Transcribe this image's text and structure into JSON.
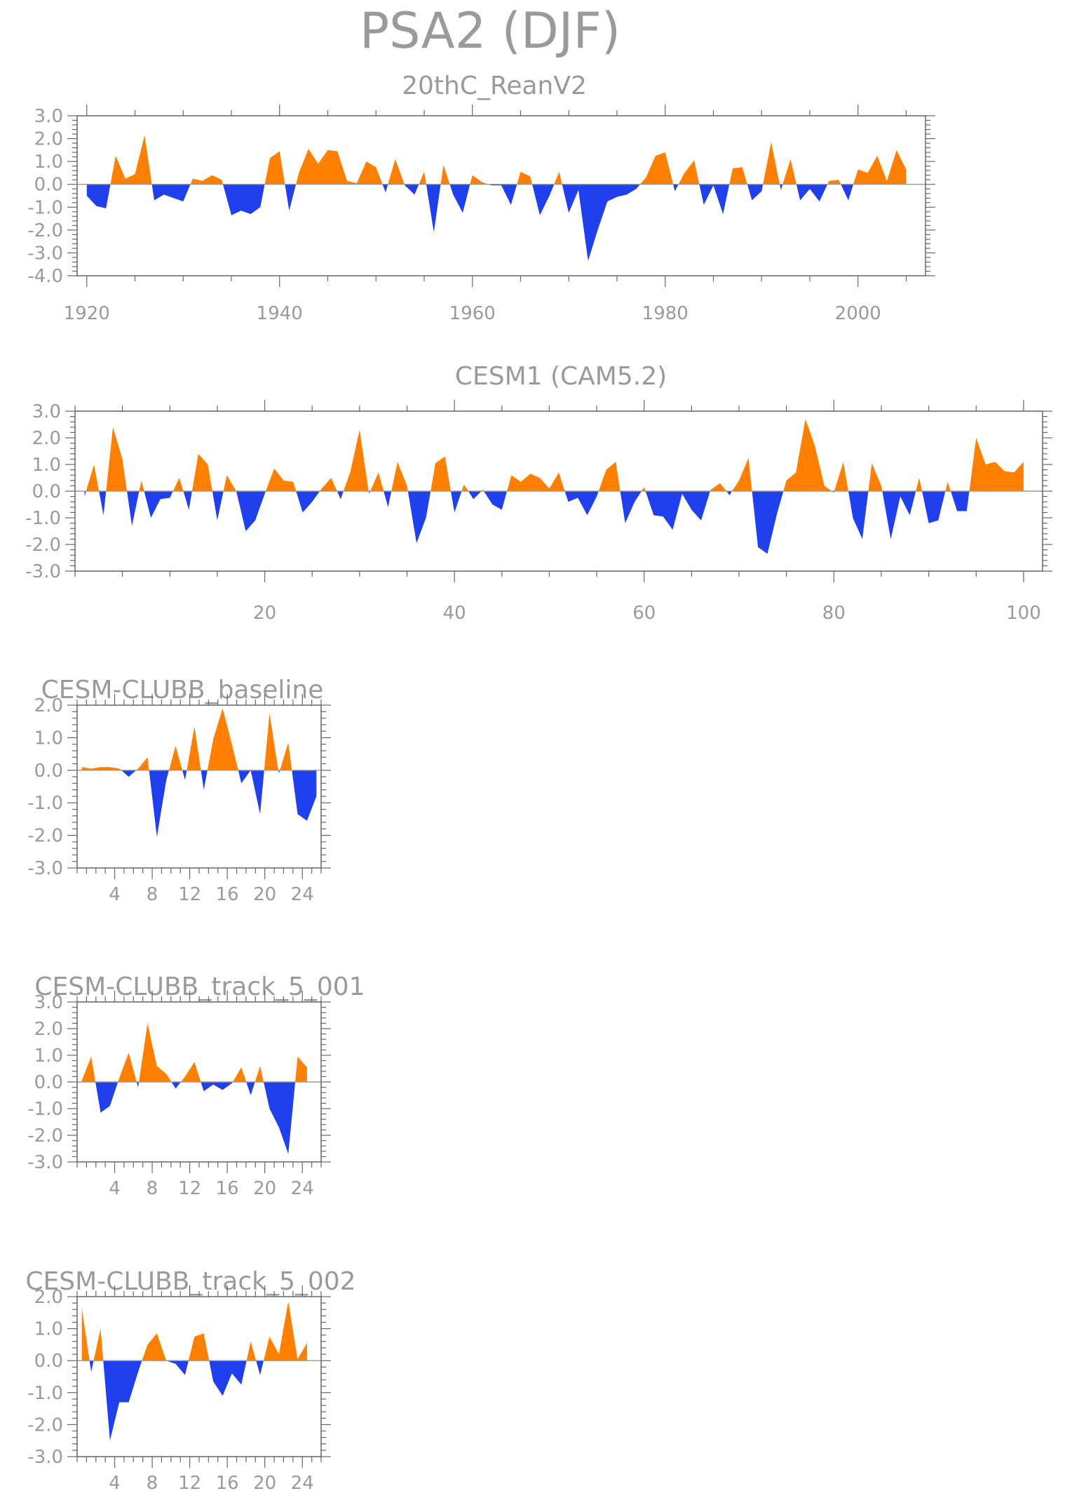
{
  "title": "PSA2 (DJF)",
  "colors": {
    "positive": "#ff8000",
    "negative": "#2040ee",
    "axis": "#666666",
    "text": "#9a9a9a"
  },
  "chart_data": [
    {
      "type": "area",
      "title": "20thC_ReanV2",
      "xlim": [
        1919,
        2007
      ],
      "ylim": [
        -4,
        3
      ],
      "x_ticks": [
        1920,
        1940,
        1960,
        1980,
        2000
      ],
      "x_tick_labels": [
        "1920",
        "1940",
        "1960",
        "1980",
        "2000"
      ],
      "y_ticks": [
        3,
        2,
        1,
        0,
        -1,
        -2,
        -3,
        -4
      ],
      "y_tick_labels": [
        "3.0",
        "2.0",
        "1.0",
        "0.0",
        "-1.0",
        "-2.0",
        "-3.0",
        "-4.0"
      ],
      "x_start": 1920,
      "values": [
        -0.5,
        -0.95,
        -1.05,
        1.25,
        0.25,
        0.45,
        2.15,
        -0.7,
        -0.45,
        -0.6,
        -0.75,
        0.25,
        0.15,
        0.4,
        0.2,
        -1.35,
        -1.15,
        -1.3,
        -1.0,
        1.15,
        1.45,
        -1.15,
        0.5,
        1.55,
        0.9,
        1.5,
        1.45,
        0.15,
        0.05,
        1.0,
        0.75,
        -0.35,
        1.1,
        -0.05,
        -0.45,
        0.55,
        -2.1,
        0.85,
        -0.45,
        -1.25,
        0.4,
        0.1,
        -0.05,
        -0.05,
        -0.9,
        0.55,
        0.35,
        -1.35,
        -0.5,
        0.55,
        -1.25,
        -0.25,
        -3.35,
        -2.0,
        -0.75,
        -0.55,
        -0.45,
        -0.2,
        0.3,
        1.25,
        1.4,
        -0.3,
        0.5,
        1.05,
        -0.9,
        -0.05,
        -1.3,
        0.7,
        0.75,
        -0.7,
        -0.3,
        1.85,
        -0.25,
        1.1,
        -0.7,
        -0.2,
        -0.75,
        0.15,
        0.2,
        -0.7,
        0.65,
        0.5,
        1.25,
        0.15,
        1.5,
        0.65
      ]
    },
    {
      "type": "area",
      "title": "CESM1 (CAM5.2)",
      "xlim": [
        0,
        102
      ],
      "ylim": [
        -3,
        3
      ],
      "x_ticks": [
        20,
        40,
        60,
        80,
        100
      ],
      "x_tick_labels": [
        "20",
        "40",
        "60",
        "80",
        "100"
      ],
      "y_ticks": [
        3,
        2,
        1,
        0,
        -1,
        -2,
        -3
      ],
      "y_tick_labels": [
        "3.0",
        "2.0",
        "1.0",
        "0.0",
        "-1.0",
        "-2.0",
        "-3.0"
      ],
      "x_start": 1,
      "values": [
        -0.2,
        1.0,
        -0.9,
        2.4,
        1.2,
        -1.3,
        0.4,
        -1.0,
        -0.3,
        -0.25,
        0.5,
        -0.7,
        1.4,
        1.0,
        -1.1,
        0.6,
        0.0,
        -1.5,
        -1.1,
        -0.1,
        0.85,
        0.4,
        0.35,
        -0.8,
        -0.4,
        0.1,
        0.5,
        -0.3,
        0.7,
        2.3,
        -0.1,
        0.7,
        -0.6,
        1.1,
        0.2,
        -1.95,
        -1.0,
        1.05,
        1.3,
        -0.8,
        0.25,
        -0.3,
        0.05,
        -0.5,
        -0.7,
        0.6,
        0.35,
        0.65,
        0.5,
        0.1,
        0.7,
        -0.4,
        -0.25,
        -0.9,
        -0.2,
        0.8,
        1.1,
        -1.2,
        -0.4,
        0.15,
        -0.9,
        -0.95,
        -1.45,
        -0.1,
        -0.7,
        -1.1,
        0.05,
        0.3,
        -0.15,
        0.4,
        1.25,
        -2.1,
        -2.35,
        -0.85,
        0.4,
        0.7,
        2.7,
        1.7,
        0.2,
        -0.05,
        1.1,
        -1.0,
        -1.8,
        1.05,
        0.2,
        -1.8,
        -0.2,
        -0.9,
        0.5,
        -1.2,
        -1.1,
        0.35,
        -0.75,
        -0.75,
        2.0,
        1.0,
        1.1,
        0.75,
        0.7,
        1.1
      ]
    },
    {
      "type": "area",
      "title": "CESM-CLUBB_baseline",
      "xlim": [
        0,
        26
      ],
      "ylim": [
        -3,
        2
      ],
      "x_ticks": [
        4,
        8,
        12,
        16,
        20,
        24
      ],
      "x_tick_labels": [
        "4",
        "8",
        "12",
        "16",
        "20",
        "24"
      ],
      "y_ticks": [
        2,
        1,
        0,
        -1,
        -2,
        -3
      ],
      "y_tick_labels": [
        "2.0",
        "1.0",
        "0.0",
        "-1.0",
        "-2.0",
        "-3.0"
      ],
      "x_start": 0.5,
      "values": [
        0.1,
        0.05,
        0.1,
        0.1,
        0.05,
        -0.2,
        0.05,
        0.4,
        -2.05,
        -0.3,
        0.75,
        -0.3,
        1.35,
        -0.6,
        0.95,
        1.9,
        0.8,
        -0.4,
        0.0,
        -1.35,
        1.75,
        -0.1,
        0.85,
        -1.35,
        -1.55,
        -0.8
      ]
    },
    {
      "type": "area",
      "title": "CESM-CLUBB_track_5_001",
      "xlim": [
        0,
        26
      ],
      "ylim": [
        -3,
        3
      ],
      "x_ticks": [
        4,
        8,
        12,
        16,
        20,
        24
      ],
      "x_tick_labels": [
        "4",
        "8",
        "12",
        "16",
        "20",
        "24"
      ],
      "y_ticks": [
        3,
        2,
        1,
        0,
        -1,
        -2,
        -3
      ],
      "y_tick_labels": [
        "3.0",
        "2.0",
        "1.0",
        "0.0",
        "-1.0",
        "-2.0",
        "-3.0"
      ],
      "x_start": 0.5,
      "values": [
        0.05,
        0.95,
        -1.15,
        -0.9,
        0.15,
        1.1,
        -0.2,
        2.2,
        0.6,
        0.3,
        -0.25,
        0.2,
        0.75,
        -0.35,
        -0.1,
        -0.3,
        -0.05,
        0.55,
        -0.5,
        0.6,
        -1.0,
        -1.7,
        -2.7,
        0.95,
        0.55
      ]
    },
    {
      "type": "area",
      "title": "CESM-CLUBB_track_5_002",
      "xlim": [
        0,
        26
      ],
      "ylim": [
        -3,
        2
      ],
      "x_ticks": [
        4,
        8,
        12,
        16,
        20,
        24
      ],
      "x_tick_labels": [
        "4",
        "8",
        "12",
        "16",
        "20",
        "24"
      ],
      "y_ticks": [
        2,
        1,
        0,
        -1,
        -2,
        -3
      ],
      "y_tick_labels": [
        "2.0",
        "1.0",
        "0.0",
        "-1.0",
        "-2.0",
        "-3.0"
      ],
      "x_start": 0.5,
      "values": [
        1.65,
        -0.35,
        1.0,
        -2.5,
        -1.3,
        -1.3,
        -0.35,
        0.5,
        0.85,
        0.0,
        -0.1,
        -0.45,
        0.75,
        0.85,
        -0.65,
        -1.1,
        -0.4,
        -0.75,
        0.6,
        -0.45,
        0.75,
        0.2,
        1.85,
        0.05,
        0.55
      ]
    }
  ]
}
